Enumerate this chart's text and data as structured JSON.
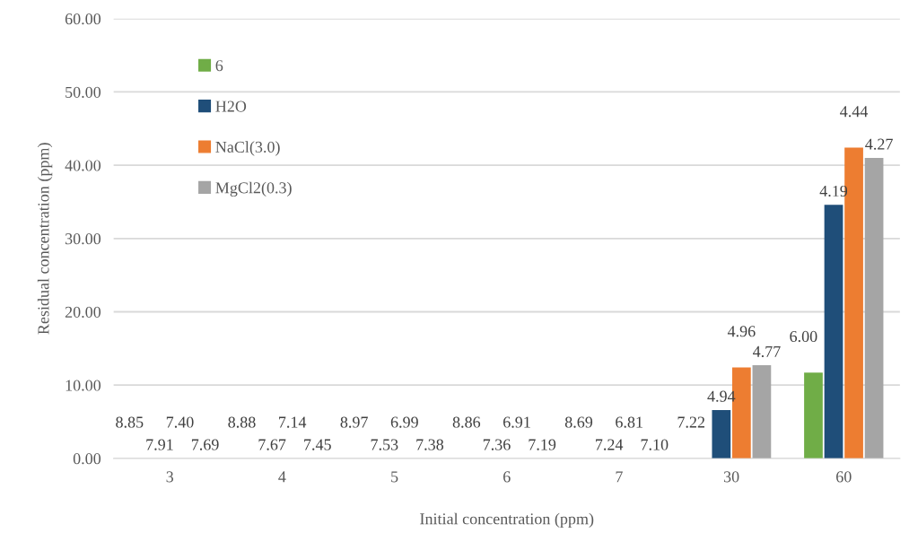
{
  "chart_data": {
    "type": "bar",
    "xlabel": "Initial concentration (ppm)",
    "ylabel": "Residual concentration (ppm)",
    "categories": [
      "3",
      "4",
      "5",
      "6",
      "7",
      "30",
      "60"
    ],
    "series": [
      {
        "name": "6",
        "color": "#70ad47",
        "values": [
          0,
          0,
          0,
          0,
          0,
          0,
          11.7
        ]
      },
      {
        "name": "H2O",
        "color": "#1f4e79",
        "values": [
          0,
          0,
          0,
          0,
          0,
          6.6,
          34.6
        ]
      },
      {
        "name": "NaCl(3.0)",
        "color": "#ed7d31",
        "values": [
          0,
          0,
          0,
          0,
          0,
          12.4,
          42.4
        ]
      },
      {
        "name": "MgCl2(0.3)",
        "color": "#a5a5a5",
        "values": [
          0,
          0,
          0,
          0,
          0,
          12.7,
          41.0
        ]
      }
    ],
    "annotations": [
      "8.85",
      "7.91",
      "7.40",
      "7.69",
      "8.88",
      "7.67",
      "7.14",
      "7.45",
      "8.97",
      "7.53",
      "6.99",
      "7.38",
      "8.86",
      "7.36",
      "6.91",
      "7.19",
      "8.69",
      "7.24",
      "6.81",
      "7.10",
      "7.22",
      "4.94",
      "4.96",
      "4.77",
      "6.00",
      "4.19",
      "4.44",
      "4.27"
    ],
    "ylim": [
      0,
      60
    ],
    "yticks": [
      {
        "value": 0,
        "label": "0.00"
      },
      {
        "value": 10,
        "label": "10.00"
      },
      {
        "value": 20,
        "label": "20.00"
      },
      {
        "value": 30,
        "label": "30.00"
      },
      {
        "value": 40,
        "label": "40.00"
      },
      {
        "value": 50,
        "label": "50.00"
      },
      {
        "value": 60,
        "label": "60.00"
      }
    ],
    "grid": "y",
    "legend": "top left"
  }
}
